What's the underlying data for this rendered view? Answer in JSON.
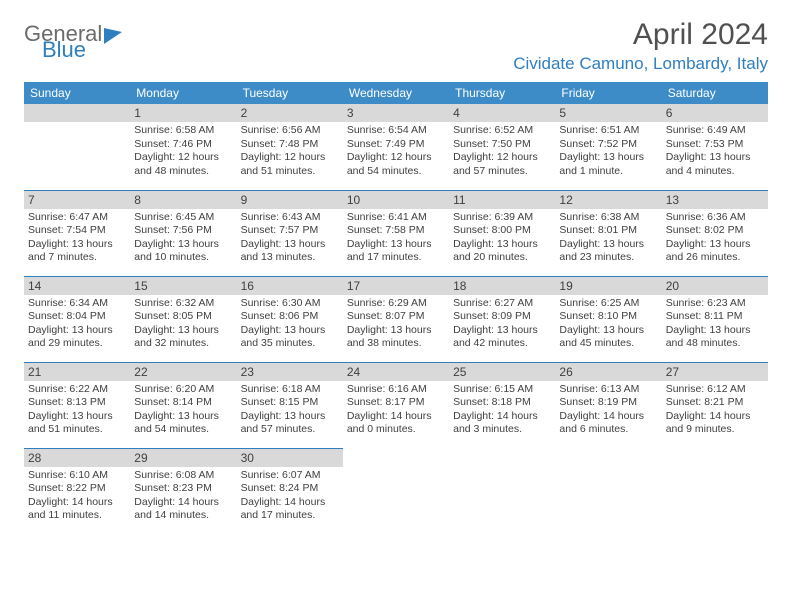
{
  "logo": {
    "part1": "General",
    "part2": "Blue"
  },
  "title": "April 2024",
  "location": "Cividate Camuno, Lombardy, Italy",
  "colors": {
    "header_bg": "#3d8cc8",
    "header_text": "#ffffff",
    "daynum_bg": "#d9d9d9",
    "text": "#404040",
    "accent": "#2f7fc0",
    "logo_gray": "#6b6b6b",
    "border": "#2f7fc0"
  },
  "daysOfWeek": [
    "Sunday",
    "Monday",
    "Tuesday",
    "Wednesday",
    "Thursday",
    "Friday",
    "Saturday"
  ],
  "weeks": [
    [
      null,
      {
        "n": "1",
        "sr": "6:58 AM",
        "ss": "7:46 PM",
        "dl": "12 hours and 48 minutes."
      },
      {
        "n": "2",
        "sr": "6:56 AM",
        "ss": "7:48 PM",
        "dl": "12 hours and 51 minutes."
      },
      {
        "n": "3",
        "sr": "6:54 AM",
        "ss": "7:49 PM",
        "dl": "12 hours and 54 minutes."
      },
      {
        "n": "4",
        "sr": "6:52 AM",
        "ss": "7:50 PM",
        "dl": "12 hours and 57 minutes."
      },
      {
        "n": "5",
        "sr": "6:51 AM",
        "ss": "7:52 PM",
        "dl": "13 hours and 1 minute."
      },
      {
        "n": "6",
        "sr": "6:49 AM",
        "ss": "7:53 PM",
        "dl": "13 hours and 4 minutes."
      }
    ],
    [
      {
        "n": "7",
        "sr": "6:47 AM",
        "ss": "7:54 PM",
        "dl": "13 hours and 7 minutes."
      },
      {
        "n": "8",
        "sr": "6:45 AM",
        "ss": "7:56 PM",
        "dl": "13 hours and 10 minutes."
      },
      {
        "n": "9",
        "sr": "6:43 AM",
        "ss": "7:57 PM",
        "dl": "13 hours and 13 minutes."
      },
      {
        "n": "10",
        "sr": "6:41 AM",
        "ss": "7:58 PM",
        "dl": "13 hours and 17 minutes."
      },
      {
        "n": "11",
        "sr": "6:39 AM",
        "ss": "8:00 PM",
        "dl": "13 hours and 20 minutes."
      },
      {
        "n": "12",
        "sr": "6:38 AM",
        "ss": "8:01 PM",
        "dl": "13 hours and 23 minutes."
      },
      {
        "n": "13",
        "sr": "6:36 AM",
        "ss": "8:02 PM",
        "dl": "13 hours and 26 minutes."
      }
    ],
    [
      {
        "n": "14",
        "sr": "6:34 AM",
        "ss": "8:04 PM",
        "dl": "13 hours and 29 minutes."
      },
      {
        "n": "15",
        "sr": "6:32 AM",
        "ss": "8:05 PM",
        "dl": "13 hours and 32 minutes."
      },
      {
        "n": "16",
        "sr": "6:30 AM",
        "ss": "8:06 PM",
        "dl": "13 hours and 35 minutes."
      },
      {
        "n": "17",
        "sr": "6:29 AM",
        "ss": "8:07 PM",
        "dl": "13 hours and 38 minutes."
      },
      {
        "n": "18",
        "sr": "6:27 AM",
        "ss": "8:09 PM",
        "dl": "13 hours and 42 minutes."
      },
      {
        "n": "19",
        "sr": "6:25 AM",
        "ss": "8:10 PM",
        "dl": "13 hours and 45 minutes."
      },
      {
        "n": "20",
        "sr": "6:23 AM",
        "ss": "8:11 PM",
        "dl": "13 hours and 48 minutes."
      }
    ],
    [
      {
        "n": "21",
        "sr": "6:22 AM",
        "ss": "8:13 PM",
        "dl": "13 hours and 51 minutes."
      },
      {
        "n": "22",
        "sr": "6:20 AM",
        "ss": "8:14 PM",
        "dl": "13 hours and 54 minutes."
      },
      {
        "n": "23",
        "sr": "6:18 AM",
        "ss": "8:15 PM",
        "dl": "13 hours and 57 minutes."
      },
      {
        "n": "24",
        "sr": "6:16 AM",
        "ss": "8:17 PM",
        "dl": "14 hours and 0 minutes."
      },
      {
        "n": "25",
        "sr": "6:15 AM",
        "ss": "8:18 PM",
        "dl": "14 hours and 3 minutes."
      },
      {
        "n": "26",
        "sr": "6:13 AM",
        "ss": "8:19 PM",
        "dl": "14 hours and 6 minutes."
      },
      {
        "n": "27",
        "sr": "6:12 AM",
        "ss": "8:21 PM",
        "dl": "14 hours and 9 minutes."
      }
    ],
    [
      {
        "n": "28",
        "sr": "6:10 AM",
        "ss": "8:22 PM",
        "dl": "14 hours and 11 minutes."
      },
      {
        "n": "29",
        "sr": "6:08 AM",
        "ss": "8:23 PM",
        "dl": "14 hours and 14 minutes."
      },
      {
        "n": "30",
        "sr": "6:07 AM",
        "ss": "8:24 PM",
        "dl": "14 hours and 17 minutes."
      },
      null,
      null,
      null,
      null
    ]
  ],
  "labels": {
    "sunrise": "Sunrise:",
    "sunset": "Sunset:",
    "daylight": "Daylight:"
  }
}
